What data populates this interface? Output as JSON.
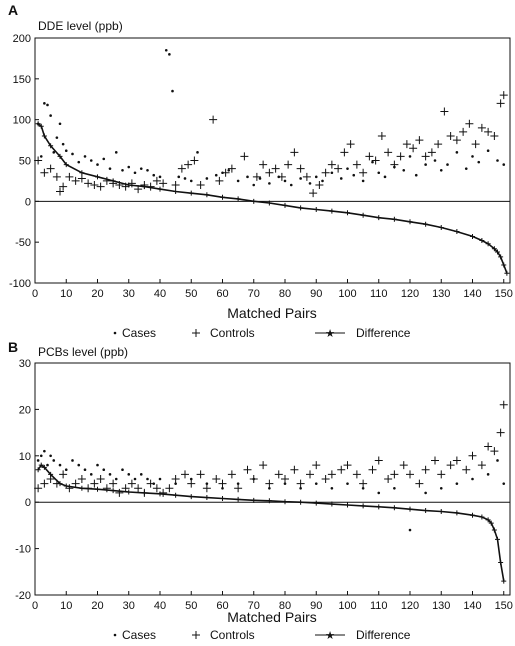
{
  "chart_data": [
    {
      "type": "scatter",
      "panel_label": "A",
      "ylabel": "DDE level (ppb)",
      "xlabel": "Matched Pairs",
      "xlim": [
        0,
        152
      ],
      "ylim": [
        -100,
        200
      ],
      "xticks": [
        0,
        10,
        20,
        30,
        40,
        50,
        60,
        70,
        80,
        90,
        100,
        110,
        120,
        130,
        140,
        150
      ],
      "yticks": [
        200,
        150,
        100,
        50,
        0,
        -50,
        -100
      ],
      "zero_line": true,
      "grid": false,
      "legend": [
        "Cases",
        "Controls",
        "Difference"
      ],
      "legend_position": "below",
      "series": [
        {
          "name": "Cases",
          "marker": "dot",
          "x": [
            1,
            2,
            3,
            4,
            5,
            6,
            7,
            8,
            9,
            10,
            12,
            14,
            16,
            18,
            20,
            22,
            24,
            26,
            28,
            30,
            32,
            34,
            36,
            38,
            40,
            42,
            43,
            44,
            46,
            48,
            50,
            52,
            55,
            58,
            60,
            62,
            65,
            68,
            70,
            72,
            75,
            78,
            80,
            82,
            85,
            88,
            90,
            92,
            95,
            98,
            100,
            102,
            105,
            108,
            110,
            112,
            115,
            118,
            120,
            122,
            125,
            128,
            130,
            132,
            135,
            138,
            140,
            142,
            145,
            148,
            150
          ],
          "y": [
            95,
            55,
            120,
            118,
            105,
            60,
            78,
            95,
            70,
            62,
            58,
            48,
            55,
            50,
            45,
            52,
            40,
            60,
            38,
            42,
            35,
            40,
            38,
            32,
            30,
            185,
            180,
            135,
            30,
            28,
            25,
            60,
            28,
            32,
            35,
            38,
            25,
            30,
            20,
            28,
            22,
            30,
            25,
            20,
            28,
            22,
            30,
            25,
            35,
            28,
            40,
            32,
            25,
            48,
            35,
            30,
            42,
            38,
            55,
            32,
            45,
            50,
            38,
            45,
            60,
            40,
            55,
            48,
            62,
            50,
            45
          ]
        },
        {
          "name": "Controls",
          "marker": "plus",
          "x": [
            1,
            3,
            5,
            7,
            8,
            9,
            11,
            13,
            15,
            17,
            19,
            21,
            23,
            25,
            27,
            29,
            31,
            33,
            35,
            37,
            39,
            41,
            45,
            47,
            49,
            51,
            53,
            57,
            59,
            61,
            63,
            67,
            71,
            73,
            75,
            77,
            79,
            81,
            83,
            85,
            87,
            89,
            91,
            93,
            95,
            97,
            99,
            101,
            103,
            105,
            107,
            109,
            111,
            113,
            115,
            117,
            119,
            121,
            123,
            125,
            127,
            129,
            131,
            133,
            135,
            137,
            139,
            141,
            143,
            145,
            147,
            149,
            150
          ],
          "y": [
            50,
            35,
            40,
            30,
            12,
            18,
            30,
            25,
            28,
            22,
            20,
            18,
            25,
            22,
            20,
            18,
            22,
            15,
            20,
            18,
            25,
            22,
            20,
            40,
            45,
            50,
            20,
            100,
            25,
            35,
            40,
            55,
            30,
            45,
            35,
            40,
            30,
            45,
            60,
            40,
            30,
            10,
            20,
            35,
            45,
            40,
            60,
            70,
            45,
            35,
            55,
            50,
            80,
            60,
            45,
            55,
            70,
            65,
            75,
            55,
            60,
            70,
            110,
            80,
            75,
            85,
            95,
            70,
            90,
            85,
            80,
            120,
            130
          ]
        },
        {
          "name": "Difference",
          "marker": "star-line",
          "x": [
            1,
            2,
            3,
            5,
            8,
            10,
            15,
            20,
            25,
            30,
            35,
            40,
            45,
            50,
            55,
            60,
            65,
            70,
            75,
            80,
            85,
            90,
            95,
            100,
            105,
            110,
            115,
            120,
            125,
            130,
            135,
            140,
            143,
            145,
            147,
            148,
            149,
            150,
            151
          ],
          "y": [
            95,
            92,
            80,
            68,
            55,
            45,
            35,
            30,
            25,
            20,
            18,
            15,
            12,
            10,
            8,
            5,
            3,
            0,
            -2,
            -5,
            -8,
            -10,
            -12,
            -14,
            -17,
            -20,
            -22,
            -25,
            -28,
            -32,
            -37,
            -43,
            -48,
            -52,
            -58,
            -62,
            -68,
            -78,
            -88
          ]
        }
      ]
    },
    {
      "type": "scatter",
      "panel_label": "B",
      "ylabel": "PCBs level (ppb)",
      "xlabel": "Matched Pairs",
      "xlim": [
        0,
        152
      ],
      "ylim": [
        -20,
        30
      ],
      "xticks": [
        0,
        10,
        20,
        30,
        40,
        50,
        60,
        70,
        80,
        90,
        100,
        110,
        120,
        130,
        140,
        150
      ],
      "yticks": [
        30,
        20,
        10,
        0,
        -10,
        -20
      ],
      "zero_line": true,
      "grid": false,
      "legend": [
        "Cases",
        "Controls",
        "Difference"
      ],
      "legend_position": "below",
      "series": [
        {
          "name": "Cases",
          "marker": "dot",
          "x": [
            1,
            2,
            3,
            4,
            5,
            6,
            8,
            10,
            12,
            14,
            16,
            18,
            20,
            22,
            24,
            26,
            28,
            30,
            32,
            34,
            36,
            38,
            40,
            45,
            50,
            55,
            60,
            65,
            70,
            75,
            80,
            85,
            90,
            95,
            100,
            105,
            110,
            115,
            120,
            125,
            130,
            135,
            140,
            145,
            148,
            150
          ],
          "y": [
            9,
            10,
            11,
            8,
            10,
            9,
            8,
            7,
            9,
            8,
            7,
            6,
            8,
            7,
            6,
            5,
            7,
            6,
            5,
            6,
            5,
            4,
            5,
            4,
            5,
            4,
            3,
            4,
            5,
            3,
            4,
            3,
            4,
            3,
            4,
            3,
            2,
            3,
            -6,
            2,
            3,
            4,
            5,
            6,
            9,
            4
          ]
        },
        {
          "name": "Controls",
          "marker": "plus",
          "x": [
            1,
            3,
            5,
            7,
            9,
            11,
            13,
            15,
            17,
            19,
            21,
            23,
            25,
            27,
            29,
            31,
            33,
            35,
            37,
            39,
            41,
            43,
            45,
            48,
            50,
            53,
            55,
            58,
            60,
            63,
            65,
            68,
            70,
            73,
            75,
            78,
            80,
            83,
            85,
            88,
            90,
            93,
            95,
            98,
            100,
            103,
            105,
            108,
            110,
            113,
            115,
            118,
            120,
            123,
            125,
            128,
            130,
            133,
            135,
            138,
            140,
            143,
            145,
            147,
            149,
            150
          ],
          "y": [
            3,
            4,
            5,
            4,
            6,
            3,
            4,
            5,
            3,
            4,
            5,
            3,
            4,
            2,
            3,
            4,
            3,
            2,
            4,
            3,
            2,
            3,
            5,
            6,
            4,
            6,
            3,
            5,
            4,
            6,
            3,
            7,
            5,
            8,
            4,
            6,
            5,
            7,
            4,
            6,
            8,
            5,
            6,
            7,
            8,
            6,
            4,
            7,
            9,
            5,
            6,
            8,
            6,
            4,
            7,
            9,
            6,
            8,
            9,
            7,
            10,
            8,
            12,
            11,
            15,
            21
          ]
        },
        {
          "name": "Difference",
          "marker": "star-line",
          "x": [
            1,
            2,
            3,
            5,
            8,
            10,
            15,
            20,
            25,
            30,
            35,
            40,
            45,
            50,
            55,
            60,
            65,
            70,
            75,
            80,
            85,
            90,
            95,
            100,
            105,
            110,
            115,
            120,
            125,
            130,
            135,
            140,
            143,
            145,
            146,
            147,
            148,
            149,
            150
          ],
          "y": [
            7,
            8,
            7.5,
            6,
            4,
            3.5,
            3,
            2.8,
            2.5,
            2.2,
            2,
            1.8,
            1.5,
            1.2,
            1,
            0.8,
            0.6,
            0.4,
            0.3,
            0.1,
            0,
            -0.2,
            -0.4,
            -0.6,
            -0.8,
            -1,
            -1.2,
            -1.5,
            -1.8,
            -2,
            -2.3,
            -2.8,
            -3.2,
            -3.8,
            -4.5,
            -6,
            -8,
            -13,
            -17
          ]
        }
      ]
    }
  ]
}
